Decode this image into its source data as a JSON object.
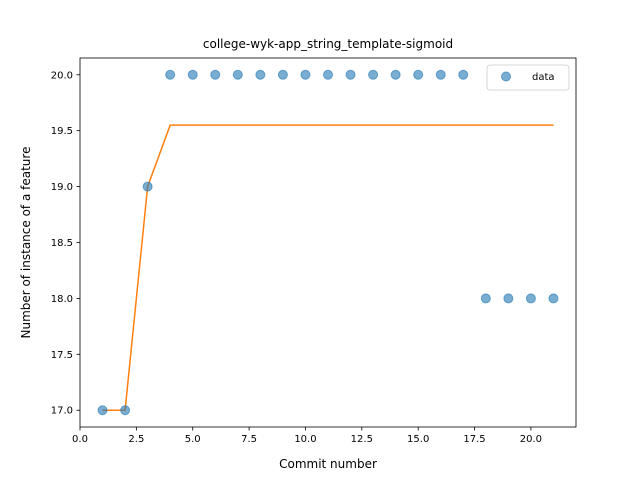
{
  "chart_data": {
    "type": "scatter",
    "title": "college-wyk-app_string_template-sigmoid",
    "xlabel": "Commit number",
    "ylabel": "Number of instance of a feature",
    "xlim": [
      0.0,
      22.0
    ],
    "ylim": [
      16.85,
      20.15
    ],
    "xticks": [
      0.0,
      2.5,
      5.0,
      7.5,
      10.0,
      12.5,
      15.0,
      17.5,
      20.0
    ],
    "xtick_labels": [
      "0.0",
      "2.5",
      "5.0",
      "7.5",
      "10.0",
      "12.5",
      "15.0",
      "17.5",
      "20.0"
    ],
    "yticks": [
      17.0,
      17.5,
      18.0,
      18.5,
      19.0,
      19.5,
      20.0
    ],
    "ytick_labels": [
      "17.0",
      "17.5",
      "18.0",
      "18.5",
      "19.0",
      "19.5",
      "20.0"
    ],
    "grid": false,
    "legend_position": "top-right",
    "series": [
      {
        "name": "data",
        "kind": "scatter",
        "color": "#1f77b4",
        "x": [
          1,
          2,
          3,
          4,
          5,
          6,
          7,
          8,
          9,
          10,
          11,
          12,
          13,
          14,
          15,
          16,
          17,
          18,
          19,
          20,
          21
        ],
        "y": [
          17,
          17,
          19,
          20,
          20,
          20,
          20,
          20,
          20,
          20,
          20,
          20,
          20,
          20,
          20,
          20,
          20,
          18,
          18,
          18,
          18
        ]
      },
      {
        "kind": "line",
        "color": "#ff7f0e",
        "x": [
          1,
          2,
          3,
          4,
          5,
          6,
          7,
          8,
          9,
          10,
          11,
          12,
          13,
          14,
          15,
          16,
          17,
          18,
          19,
          20,
          21
        ],
        "y": [
          17,
          17,
          19,
          19.55,
          19.55,
          19.55,
          19.55,
          19.55,
          19.55,
          19.55,
          19.55,
          19.55,
          19.55,
          19.55,
          19.55,
          19.55,
          19.55,
          19.55,
          19.55,
          19.55,
          19.55
        ]
      }
    ]
  }
}
